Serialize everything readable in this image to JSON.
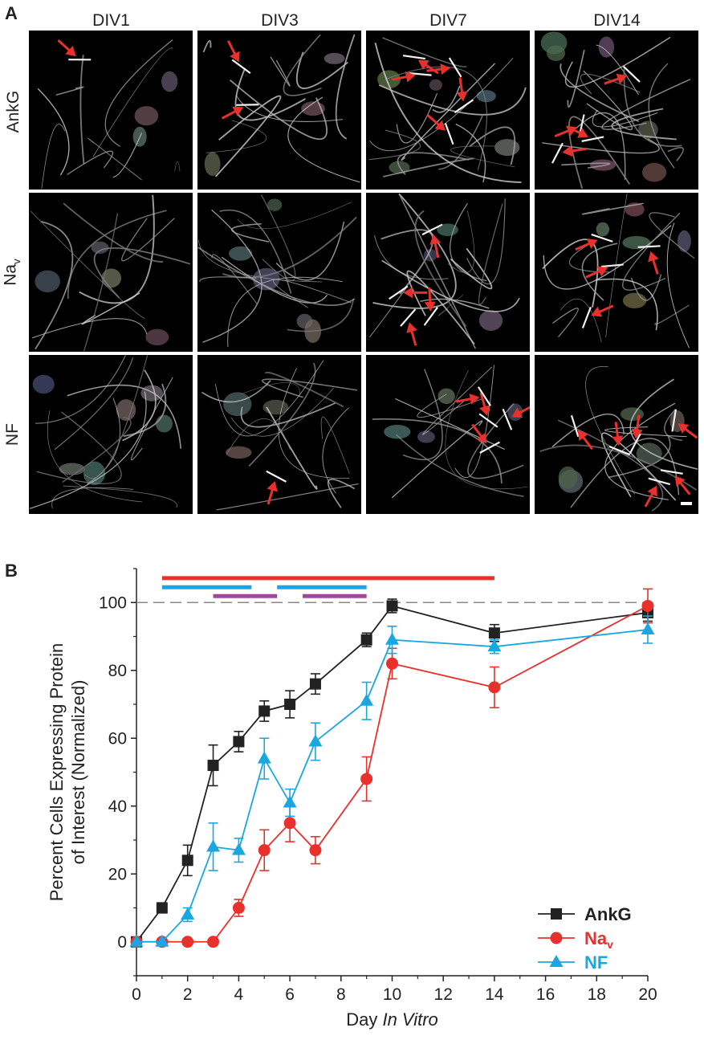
{
  "panelA": {
    "letter": "A",
    "columns": [
      "DIV1",
      "DIV3",
      "DIV7",
      "DIV14"
    ],
    "rows": [
      {
        "label": "AnkG",
        "subscript": ""
      },
      {
        "label": "Na",
        "subscript": "v"
      },
      {
        "label": "NF",
        "subscript": ""
      }
    ],
    "arrow_color": "#e8302c",
    "arrow_counts": [
      [
        1,
        2,
        5,
        4
      ],
      [
        0,
        0,
        4,
        4
      ],
      [
        0,
        1,
        4,
        6
      ]
    ]
  },
  "panelB": {
    "letter": "B",
    "chart_data": {
      "type": "line",
      "xlabel": "Day",
      "xlabel_italic": "In Vitro",
      "ylabel_line1": "Percent Cells Expressing Protein",
      "ylabel_line2": "of Interest (Normalized)",
      "xlim": [
        0,
        20
      ],
      "ylim": [
        -10,
        110
      ],
      "xticks": [
        0,
        2,
        4,
        6,
        8,
        10,
        12,
        14,
        16,
        18,
        20
      ],
      "yticks": [
        0,
        20,
        40,
        60,
        80,
        100
      ],
      "reference_line": 100,
      "legend_position": "bottom-right",
      "series": [
        {
          "name": "AnkG",
          "subscript": "",
          "color": "#222222",
          "marker": "square",
          "x": [
            0,
            1,
            2,
            3,
            4,
            5,
            6,
            7,
            9,
            10,
            14,
            20
          ],
          "y": [
            0,
            10,
            24,
            52,
            59,
            68,
            70,
            76,
            89,
            99,
            91,
            97
          ],
          "err": [
            0,
            1.5,
            4.5,
            6,
            3,
            3,
            4,
            3,
            2,
            2,
            2.5,
            2.5
          ]
        },
        {
          "name": "Na",
          "subscript": "v",
          "color": "#e8302c",
          "marker": "circle",
          "x": [
            0,
            1,
            2,
            3,
            4,
            5,
            6,
            7,
            9,
            10,
            14,
            20
          ],
          "y": [
            0,
            0,
            0,
            0,
            10,
            27,
            35,
            27,
            48,
            82,
            75,
            99
          ],
          "err": [
            0,
            0,
            0,
            0,
            2.5,
            6,
            5.5,
            4,
            6.5,
            4.5,
            6,
            5
          ]
        },
        {
          "name": "NF",
          "subscript": "",
          "color": "#1aa7e0",
          "marker": "triangle",
          "x": [
            0,
            1,
            2,
            3,
            4,
            5,
            6,
            7,
            9,
            10,
            14,
            20
          ],
          "y": [
            0,
            0,
            8,
            28,
            27,
            54,
            41,
            59,
            71,
            89,
            87,
            92
          ],
          "err": [
            0,
            0,
            2,
            7,
            3.5,
            6,
            4,
            5.5,
            5.5,
            4,
            2,
            4
          ]
        }
      ],
      "significance_bars": [
        {
          "color": "#e8302c",
          "x": [
            1,
            14
          ],
          "level": 1
        },
        {
          "color": "#1aa7e0",
          "x": [
            1,
            4.5
          ],
          "level": 2
        },
        {
          "color": "#1aa7e0",
          "x": [
            5.5,
            9
          ],
          "level": 2
        },
        {
          "color": "#a0479b",
          "x": [
            3,
            5.5
          ],
          "level": 3
        },
        {
          "color": "#a0479b",
          "x": [
            6.5,
            9
          ],
          "level": 3
        }
      ]
    }
  }
}
